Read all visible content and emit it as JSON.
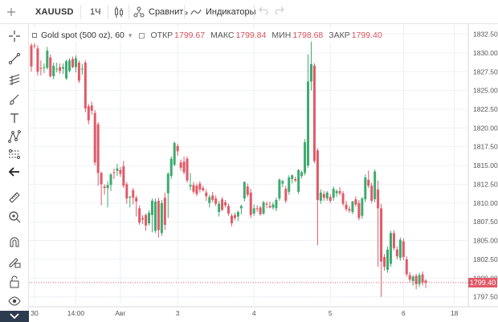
{
  "toolbar": {
    "symbol": "XAUUSD",
    "interval": "1Ч",
    "compare_label": "Сравнить",
    "indicators_label": "Индикаторы"
  },
  "legend": {
    "title": "Gold spot (500 oz), 60",
    "open_label": "ОТКР",
    "open_value": "1799.67",
    "high_label": "МАКС",
    "high_value": "1799.84",
    "low_label": "МИН",
    "low_value": "1798.68",
    "close_label": "ЗАКР",
    "close_value": "1799.40"
  },
  "left_tools": [
    "crosshair-icon",
    "trend-line-icon",
    "pitchfork-icon",
    "brush-icon",
    "text-icon",
    "pattern-icon",
    "measure-levels-icon",
    "back-arrow-icon",
    "ruler-icon",
    "zoom-in-icon",
    "magnet-icon",
    "lock-drawing-icon",
    "lock-icon",
    "eye-icon",
    "layers-icon"
  ],
  "colors": {
    "up": "#3eaa6f",
    "down": "#e05a67",
    "grid": "#eef0f3",
    "axis_text": "#555555",
    "price_line": "#e05a67"
  },
  "current_price": "1799.40",
  "chart_data": {
    "type": "candlestick",
    "y_ticks": [
      "1832.50",
      "1830.00",
      "1827.50",
      "1825.00",
      "1822.50",
      "1820.00",
      "1817.50",
      "1815.00",
      "1812.50",
      "1810.00",
      "1807.50",
      "1805.00",
      "1802.50",
      "1800.00",
      "1797.50"
    ],
    "ylim": [
      1796.5,
      1833.2
    ],
    "x_ticks": [
      {
        "label": "30",
        "idx": 1
      },
      {
        "label": "14:00",
        "idx": 14
      },
      {
        "label": "Авг",
        "idx": 28
      },
      {
        "label": "3",
        "idx": 46
      },
      {
        "label": "4",
        "idx": 70
      },
      {
        "label": "5",
        "idx": 94
      },
      {
        "label": "6",
        "idx": 117
      },
      {
        "label": "18",
        "idx": 133
      }
    ],
    "candles": [
      [
        1831.0,
        1831.3,
        1827.5,
        1828.2
      ],
      [
        1831.0,
        1831.3,
        1830.6,
        1830.9
      ],
      [
        1830.6,
        1831.0,
        1827.0,
        1827.5
      ],
      [
        1828.0,
        1829.0,
        1827.0,
        1827.9
      ],
      [
        1828.1,
        1828.6,
        1827.3,
        1828.1
      ],
      [
        1828.0,
        1830.8,
        1827.8,
        1830.3
      ],
      [
        1829.4,
        1829.8,
        1826.7,
        1826.9
      ],
      [
        1826.9,
        1828.7,
        1826.5,
        1828.3
      ],
      [
        1827.8,
        1828.7,
        1827.4,
        1827.9
      ],
      [
        1828.1,
        1828.6,
        1827.2,
        1827.6
      ],
      [
        1827.9,
        1828.6,
        1827.2,
        1828.1
      ],
      [
        1826.6,
        1829.1,
        1826.4,
        1828.9
      ],
      [
        1827.6,
        1829.3,
        1827.4,
        1829.0
      ],
      [
        1829.2,
        1829.5,
        1828.0,
        1828.1
      ],
      [
        1828.1,
        1829.7,
        1827.4,
        1829.3
      ],
      [
        1828.7,
        1829.0,
        1826.0,
        1826.3
      ],
      [
        1827.8,
        1828.5,
        1827.1,
        1827.9
      ],
      [
        1828.7,
        1829.0,
        1822.1,
        1822.6
      ],
      [
        1822.9,
        1823.2,
        1820.5,
        1821.0
      ],
      [
        1823.0,
        1823.5,
        1821.8,
        1822.3
      ],
      [
        1822.0,
        1822.4,
        1815.0,
        1815.4
      ],
      [
        1820.5,
        1820.8,
        1812.3,
        1814.0
      ],
      [
        1814.0,
        1814.2,
        1809.7,
        1812.5
      ],
      [
        1812.2,
        1812.5,
        1811.1,
        1812.0
      ],
      [
        1812.0,
        1812.9,
        1809.4,
        1812.4
      ],
      [
        1812.4,
        1814.0,
        1811.6,
        1813.8
      ],
      [
        1814.1,
        1814.6,
        1813.2,
        1814.0
      ],
      [
        1814.3,
        1815.2,
        1813.6,
        1814.6
      ],
      [
        1814.4,
        1814.8,
        1813.5,
        1813.9
      ],
      [
        1814.9,
        1815.6,
        1812.0,
        1812.3
      ],
      [
        1812.5,
        1812.8,
        1809.9,
        1810.6
      ],
      [
        1810.7,
        1811.0,
        1809.4,
        1810.8
      ],
      [
        1811.7,
        1812.0,
        1809.8,
        1810.7
      ],
      [
        1810.7,
        1811.0,
        1808.2,
        1810.2
      ],
      [
        1809.3,
        1809.7,
        1807.1,
        1807.4
      ],
      [
        1808.0,
        1808.4,
        1807.2,
        1807.8
      ],
      [
        1808.4,
        1808.6,
        1806.3,
        1807.0
      ],
      [
        1807.3,
        1809.0,
        1807.0,
        1808.7
      ],
      [
        1808.4,
        1810.6,
        1806.1,
        1810.3
      ],
      [
        1806.3,
        1810.6,
        1806.0,
        1810.2
      ],
      [
        1810.3,
        1810.7,
        1805.4,
        1806.4
      ],
      [
        1806.0,
        1810.4,
        1805.6,
        1810.0
      ],
      [
        1810.7,
        1811.4,
        1806.4,
        1807.1
      ],
      [
        1811.3,
        1814.1,
        1808.0,
        1813.9
      ],
      [
        1813.6,
        1816.2,
        1813.2,
        1815.9
      ],
      [
        1815.1,
        1818.2,
        1814.9,
        1818.0
      ],
      [
        1817.6,
        1817.9,
        1816.3,
        1816.9
      ],
      [
        1815.4,
        1815.8,
        1814.3,
        1814.7
      ],
      [
        1815.5,
        1816.2,
        1813.8,
        1814.1
      ],
      [
        1815.9,
        1816.2,
        1812.7,
        1813.0
      ],
      [
        1812.2,
        1814.0,
        1811.7,
        1812.4
      ],
      [
        1812.4,
        1812.8,
        1811.2,
        1811.5
      ],
      [
        1812.3,
        1812.6,
        1810.9,
        1811.2
      ],
      [
        1812.6,
        1812.9,
        1811.4,
        1811.8
      ],
      [
        1812.0,
        1812.3,
        1811.5,
        1811.7
      ],
      [
        1811.4,
        1811.8,
        1810.3,
        1810.9
      ],
      [
        1810.0,
        1811.1,
        1809.4,
        1810.8
      ],
      [
        1811.0,
        1811.5,
        1810.1,
        1810.4
      ],
      [
        1810.6,
        1811.0,
        1809.6,
        1809.9
      ],
      [
        1808.8,
        1810.3,
        1808.2,
        1809.9
      ],
      [
        1810.5,
        1810.8,
        1808.9,
        1809.1
      ],
      [
        1810.1,
        1810.4,
        1809.4,
        1809.7
      ],
      [
        1809.6,
        1809.9,
        1808.3,
        1808.6
      ],
      [
        1808.3,
        1808.6,
        1806.9,
        1807.3
      ],
      [
        1808.4,
        1808.7,
        1807.7,
        1808.0
      ],
      [
        1808.2,
        1809.0,
        1807.6,
        1808.8
      ],
      [
        1809.3,
        1809.8,
        1808.5,
        1809.6
      ],
      [
        1810.6,
        1812.9,
        1810.2,
        1812.8
      ],
      [
        1812.2,
        1812.6,
        1810.8,
        1811.1
      ],
      [
        1811.4,
        1811.9,
        1808.0,
        1808.4
      ],
      [
        1808.6,
        1809.8,
        1808.3,
        1809.3
      ],
      [
        1809.3,
        1809.7,
        1808.8,
        1809.2
      ],
      [
        1809.4,
        1809.6,
        1808.3,
        1808.5
      ],
      [
        1808.6,
        1810.3,
        1808.4,
        1810.1
      ],
      [
        1809.9,
        1810.2,
        1809.3,
        1809.8
      ],
      [
        1809.6,
        1810.2,
        1809.3,
        1809.4
      ],
      [
        1809.4,
        1810.1,
        1809.1,
        1809.8
      ],
      [
        1809.3,
        1810.7,
        1808.9,
        1810.4
      ],
      [
        1810.6,
        1813.3,
        1810.3,
        1813.1
      ],
      [
        1812.6,
        1813.1,
        1812.1,
        1812.9
      ],
      [
        1811.9,
        1812.3,
        1810.0,
        1810.3
      ],
      [
        1811.5,
        1813.7,
        1811.1,
        1813.4
      ],
      [
        1813.2,
        1813.8,
        1812.6,
        1813.7
      ],
      [
        1813.2,
        1813.5,
        1812.8,
        1813.0
      ],
      [
        1811.5,
        1814.5,
        1811.2,
        1814.4
      ],
      [
        1813.6,
        1814.3,
        1813.3,
        1814.1
      ],
      [
        1814.0,
        1818.5,
        1813.7,
        1818.1
      ],
      [
        1815.0,
        1829.8,
        1814.7,
        1826.2
      ],
      [
        1826.2,
        1832.0,
        1825.0,
        1828.5
      ],
      [
        1828.3,
        1828.6,
        1815.3,
        1815.6
      ],
      [
        1817.0,
        1817.3,
        1804.4,
        1810.4
      ],
      [
        1810.3,
        1811.8,
        1809.9,
        1811.4
      ],
      [
        1811.2,
        1811.6,
        1810.3,
        1810.7
      ],
      [
        1810.6,
        1811.6,
        1810.3,
        1811.4
      ],
      [
        1810.8,
        1811.2,
        1810.0,
        1810.3
      ],
      [
        1810.7,
        1812.2,
        1810.3,
        1811.9
      ],
      [
        1811.3,
        1811.8,
        1810.8,
        1811.6
      ],
      [
        1811.6,
        1812.1,
        1811.0,
        1811.3
      ],
      [
        1811.3,
        1811.6,
        1809.6,
        1809.9
      ],
      [
        1809.8,
        1810.3,
        1808.9,
        1809.2
      ],
      [
        1809.2,
        1809.6,
        1808.7,
        1809.0
      ],
      [
        1808.8,
        1810.3,
        1808.5,
        1810.2
      ],
      [
        1810.5,
        1810.9,
        1809.5,
        1809.8
      ],
      [
        1810.0,
        1810.4,
        1807.7,
        1808.0
      ],
      [
        1808.3,
        1810.8,
        1807.9,
        1810.6
      ],
      [
        1810.5,
        1813.8,
        1810.1,
        1813.4
      ],
      [
        1813.1,
        1814.3,
        1812.0,
        1812.3
      ],
      [
        1812.3,
        1812.7,
        1810.0,
        1810.3
      ],
      [
        1810.5,
        1814.5,
        1810.1,
        1814.2
      ],
      [
        1811.8,
        1813.0,
        1801.5,
        1809.3
      ],
      [
        1809.3,
        1809.9,
        1797.5,
        1802.2
      ],
      [
        1802.8,
        1803.2,
        1801.0,
        1801.5
      ],
      [
        1801.1,
        1804.2,
        1800.7,
        1803.8
      ],
      [
        1801.9,
        1806.3,
        1801.5,
        1806.0
      ],
      [
        1806.0,
        1806.4,
        1803.7,
        1804.0
      ],
      [
        1803.8,
        1804.2,
        1802.5,
        1802.9
      ],
      [
        1802.7,
        1805.4,
        1802.3,
        1805.1
      ],
      [
        1804.9,
        1805.3,
        1802.4,
        1802.8
      ],
      [
        1802.5,
        1802.9,
        1800.2,
        1800.5
      ],
      [
        1800.4,
        1800.8,
        1799.4,
        1799.8
      ],
      [
        1799.6,
        1800.4,
        1799.0,
        1800.2
      ],
      [
        1800.3,
        1800.6,
        1798.5,
        1799.2
      ],
      [
        1799.2,
        1800.7,
        1798.8,
        1800.4
      ],
      [
        1800.5,
        1800.9,
        1799.0,
        1799.4
      ],
      [
        1799.67,
        1799.84,
        1798.68,
        1799.4
      ]
    ]
  }
}
